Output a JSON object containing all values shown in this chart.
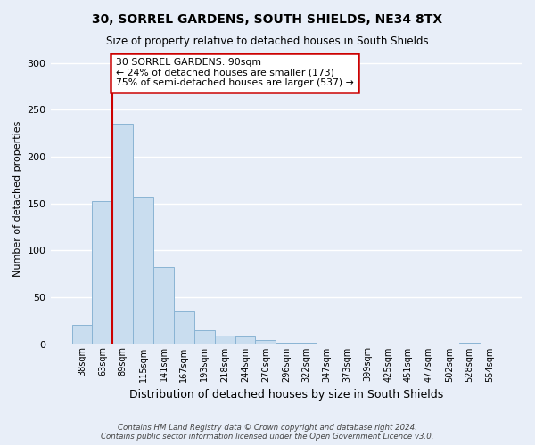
{
  "title": "30, SORREL GARDENS, SOUTH SHIELDS, NE34 8TX",
  "subtitle": "Size of property relative to detached houses in South Shields",
  "xlabel": "Distribution of detached houses by size in South Shields",
  "ylabel": "Number of detached properties",
  "bar_color": "#c9ddef",
  "bar_edge_color": "#8ab4d4",
  "background_color": "#e8eef8",
  "grid_color": "#ffffff",
  "bin_labels": [
    "38sqm",
    "63sqm",
    "89sqm",
    "115sqm",
    "141sqm",
    "167sqm",
    "193sqm",
    "218sqm",
    "244sqm",
    "270sqm",
    "296sqm",
    "322sqm",
    "347sqm",
    "373sqm",
    "399sqm",
    "425sqm",
    "451sqm",
    "477sqm",
    "502sqm",
    "528sqm",
    "554sqm"
  ],
  "bar_values": [
    20,
    152,
    235,
    157,
    82,
    36,
    15,
    9,
    8,
    4,
    1,
    1,
    0,
    0,
    0,
    0,
    0,
    0,
    0,
    1,
    0
  ],
  "vline_color": "#cc0000",
  "annotation_box_color": "#cc0000",
  "annotation_line1": "30 SORREL GARDENS: 90sqm",
  "annotation_line2": "← 24% of detached houses are smaller (173)",
  "annotation_line3": "75% of semi-detached houses are larger (537) →",
  "ylim": [
    0,
    310
  ],
  "yticks": [
    0,
    50,
    100,
    150,
    200,
    250,
    300
  ],
  "footer_text": "Contains HM Land Registry data © Crown copyright and database right 2024.\nContains public sector information licensed under the Open Government Licence v3.0.",
  "figsize": [
    6.0,
    5.0
  ],
  "dpi": 100
}
